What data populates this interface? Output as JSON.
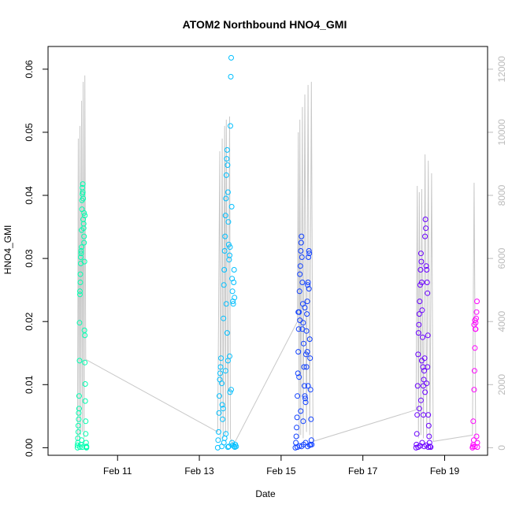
{
  "chart_data": {
    "type": "scatter",
    "title": "ATOM2 Northbound HNO4_GMI",
    "xlabel": "Date",
    "ylabel": "HNO4_GMI",
    "x_ticks": [
      "Feb 11",
      "Feb 13",
      "Feb 15",
      "Feb 17",
      "Feb 19"
    ],
    "x_tick_days": [
      11,
      13,
      15,
      17,
      19
    ],
    "xlim_days": [
      9.3,
      20.05
    ],
    "ylim": [
      -0.0012,
      0.0636
    ],
    "y_ticks": [
      0.0,
      0.01,
      0.02,
      0.03,
      0.04,
      0.05,
      0.06
    ],
    "y_tick_labels": [
      "0.00",
      "0.01",
      "0.02",
      "0.03",
      "0.04",
      "0.05",
      "0.06"
    ],
    "y2_lim": [
      -240,
      12720
    ],
    "y2_ticks": [
      0,
      2000,
      4000,
      6000,
      8000,
      10000,
      12000
    ],
    "y2_tick_labels": [
      "0",
      "2000",
      "4000",
      "6000",
      "8000",
      "10000",
      "12000"
    ],
    "altitude_color": "#c8c8c8",
    "series": [
      {
        "color": "#00ffb0",
        "points": [
          [
            10.02,
            0.0
          ],
          [
            10.02,
            0.0004
          ],
          [
            10.03,
            0.0008
          ],
          [
            10.03,
            0.0015
          ],
          [
            10.04,
            0.0025
          ],
          [
            10.04,
            0.0035
          ],
          [
            10.05,
            0.0045
          ],
          [
            10.05,
            0.0055
          ],
          [
            10.06,
            0.0062
          ],
          [
            10.06,
            0.0082
          ],
          [
            10.07,
            0.0138
          ],
          [
            10.07,
            0.0198
          ],
          [
            10.08,
            0.0243
          ],
          [
            10.08,
            0.0248
          ],
          [
            10.09,
            0.0262
          ],
          [
            10.09,
            0.0275
          ],
          [
            10.1,
            0.0292
          ],
          [
            10.1,
            0.0302
          ],
          [
            10.11,
            0.0308
          ],
          [
            10.11,
            0.0312
          ],
          [
            10.12,
            0.0318
          ],
          [
            10.12,
            0.0345
          ],
          [
            10.13,
            0.0378
          ],
          [
            10.13,
            0.0392
          ],
          [
            10.14,
            0.0402
          ],
          [
            10.14,
            0.0412
          ],
          [
            10.15,
            0.0418
          ],
          [
            10.15,
            0.0405
          ],
          [
            10.16,
            0.0395
          ],
          [
            10.16,
            0.0362
          ],
          [
            10.17,
            0.0355
          ],
          [
            10.17,
            0.0348
          ],
          [
            10.18,
            0.0335
          ],
          [
            10.18,
            0.0325
          ],
          [
            10.19,
            0.0295
          ],
          [
            10.19,
            0.0186
          ],
          [
            10.2,
            0.0178
          ],
          [
            10.2,
            0.0135
          ],
          [
            10.21,
            0.0101
          ],
          [
            10.21,
            0.0074
          ],
          [
            10.22,
            0.0042
          ],
          [
            10.22,
            0.0022
          ],
          [
            10.23,
            0.0008
          ],
          [
            10.23,
            0.0001
          ],
          [
            10.24,
            0.0
          ],
          [
            10.24,
            0.0002
          ],
          [
            10.08,
            0.0001
          ],
          [
            10.1,
            0.0005
          ],
          [
            10.12,
            0.0012
          ],
          [
            10.14,
            0.0001
          ],
          [
            10.18,
            0.0372
          ],
          [
            10.2,
            0.0368
          ]
        ]
      },
      {
        "color": "#00bfff",
        "points": [
          [
            13.45,
            0.0
          ],
          [
            13.46,
            0.0012
          ],
          [
            13.47,
            0.0025
          ],
          [
            13.48,
            0.0055
          ],
          [
            13.49,
            0.0082
          ],
          [
            13.5,
            0.0108
          ],
          [
            13.51,
            0.0118
          ],
          [
            13.52,
            0.0128
          ],
          [
            13.53,
            0.0142
          ],
          [
            13.55,
            0.0102
          ],
          [
            13.56,
            0.0068
          ],
          [
            13.57,
            0.0045
          ],
          [
            13.58,
            0.0062
          ],
          [
            13.59,
            0.0205
          ],
          [
            13.6,
            0.0258
          ],
          [
            13.61,
            0.0282
          ],
          [
            13.62,
            0.0312
          ],
          [
            13.63,
            0.0335
          ],
          [
            13.64,
            0.0368
          ],
          [
            13.65,
            0.0395
          ],
          [
            13.66,
            0.0432
          ],
          [
            13.67,
            0.0458
          ],
          [
            13.68,
            0.0472
          ],
          [
            13.69,
            0.0448
          ],
          [
            13.7,
            0.0405
          ],
          [
            13.71,
            0.0358
          ],
          [
            13.72,
            0.0322
          ],
          [
            13.73,
            0.0298
          ],
          [
            13.74,
            0.0305
          ],
          [
            13.75,
            0.0318
          ],
          [
            13.76,
            0.051
          ],
          [
            13.77,
            0.0588
          ],
          [
            13.78,
            0.0618
          ],
          [
            13.79,
            0.0382
          ],
          [
            13.8,
            0.0268
          ],
          [
            13.81,
            0.0248
          ],
          [
            13.82,
            0.0232
          ],
          [
            13.83,
            0.0228
          ],
          [
            13.84,
            0.0262
          ],
          [
            13.85,
            0.0282
          ],
          [
            13.86,
            0.0238
          ],
          [
            13.87,
            0.0001
          ],
          [
            13.88,
            0.0005
          ],
          [
            13.9,
            0.0002
          ],
          [
            13.55,
            0.0002
          ],
          [
            13.6,
            0.0008
          ],
          [
            13.62,
            0.0015
          ],
          [
            13.65,
            0.0022
          ],
          [
            13.7,
            0.0001
          ],
          [
            13.72,
            0.0002
          ],
          [
            13.75,
            0.0088
          ],
          [
            13.78,
            0.0092
          ],
          [
            13.8,
            0.0008
          ],
          [
            13.82,
            0.0004
          ],
          [
            13.85,
            0.0002
          ],
          [
            13.68,
            0.0182
          ],
          [
            13.66,
            0.0228
          ],
          [
            13.64,
            0.0122
          ],
          [
            13.7,
            0.0138
          ],
          [
            13.74,
            0.0145
          ]
        ]
      },
      {
        "color": "#1040ff",
        "points": [
          [
            15.35,
            0.0
          ],
          [
            15.36,
            0.0008
          ],
          [
            15.37,
            0.0018
          ],
          [
            15.38,
            0.0032
          ],
          [
            15.39,
            0.0048
          ],
          [
            15.4,
            0.0082
          ],
          [
            15.41,
            0.0118
          ],
          [
            15.42,
            0.0152
          ],
          [
            15.43,
            0.0188
          ],
          [
            15.44,
            0.0215
          ],
          [
            15.45,
            0.0248
          ],
          [
            15.46,
            0.0275
          ],
          [
            15.47,
            0.0288
          ],
          [
            15.48,
            0.0312
          ],
          [
            15.49,
            0.0325
          ],
          [
            15.5,
            0.0335
          ],
          [
            15.51,
            0.0302
          ],
          [
            15.52,
            0.0262
          ],
          [
            15.53,
            0.0228
          ],
          [
            15.54,
            0.0198
          ],
          [
            15.55,
            0.0165
          ],
          [
            15.56,
            0.0128
          ],
          [
            15.57,
            0.0098
          ],
          [
            15.58,
            0.0082
          ],
          [
            15.59,
            0.0078
          ],
          [
            15.6,
            0.0072
          ],
          [
            15.61,
            0.0148
          ],
          [
            15.62,
            0.0185
          ],
          [
            15.63,
            0.0212
          ],
          [
            15.64,
            0.0232
          ],
          [
            15.65,
            0.0258
          ],
          [
            15.66,
            0.0262
          ],
          [
            15.67,
            0.0302
          ],
          [
            15.68,
            0.0312
          ],
          [
            15.69,
            0.0308
          ],
          [
            15.7,
            0.0172
          ],
          [
            15.71,
            0.0142
          ],
          [
            15.72,
            0.0092
          ],
          [
            15.73,
            0.0045
          ],
          [
            15.74,
            0.0012
          ],
          [
            15.75,
            0.0005
          ],
          [
            15.4,
            0.0001
          ],
          [
            15.45,
            0.0003
          ],
          [
            15.5,
            0.0002
          ],
          [
            15.55,
            0.0005
          ],
          [
            15.6,
            0.0008
          ],
          [
            15.65,
            0.0002
          ],
          [
            15.7,
            0.0004
          ],
          [
            15.42,
            0.0215
          ],
          [
            15.46,
            0.0202
          ],
          [
            15.52,
            0.0188
          ],
          [
            15.58,
            0.0222
          ],
          [
            15.62,
            0.0128
          ],
          [
            15.66,
            0.0098
          ],
          [
            15.48,
            0.0058
          ],
          [
            15.54,
            0.0042
          ],
          [
            15.44,
            0.0112
          ],
          [
            15.64,
            0.0152
          ],
          [
            15.68,
            0.0252
          ],
          [
            15.72,
            0.0005
          ]
        ]
      },
      {
        "color": "#6a00ff",
        "points": [
          [
            18.3,
            0.0
          ],
          [
            18.31,
            0.0005
          ],
          [
            18.32,
            0.0022
          ],
          [
            18.33,
            0.0052
          ],
          [
            18.34,
            0.0098
          ],
          [
            18.35,
            0.0148
          ],
          [
            18.36,
            0.0182
          ],
          [
            18.37,
            0.0195
          ],
          [
            18.38,
            0.0212
          ],
          [
            18.39,
            0.0232
          ],
          [
            18.4,
            0.0258
          ],
          [
            18.41,
            0.0282
          ],
          [
            18.42,
            0.0308
          ],
          [
            18.43,
            0.0295
          ],
          [
            18.44,
            0.0262
          ],
          [
            18.45,
            0.0218
          ],
          [
            18.46,
            0.0175
          ],
          [
            18.47,
            0.0128
          ],
          [
            18.48,
            0.0098
          ],
          [
            18.49,
            0.0108
          ],
          [
            18.5,
            0.0122
          ],
          [
            18.51,
            0.0142
          ],
          [
            18.52,
            0.0335
          ],
          [
            18.53,
            0.0362
          ],
          [
            18.54,
            0.0348
          ],
          [
            18.55,
            0.0288
          ],
          [
            18.56,
            0.0282
          ],
          [
            18.57,
            0.0262
          ],
          [
            18.58,
            0.0245
          ],
          [
            18.59,
            0.0178
          ],
          [
            18.6,
            0.0052
          ],
          [
            18.61,
            0.0035
          ],
          [
            18.62,
            0.0018
          ],
          [
            18.63,
            0.0008
          ],
          [
            18.64,
            0.0002
          ],
          [
            18.66,
            0.0001
          ],
          [
            18.35,
            0.0001
          ],
          [
            18.4,
            0.0003
          ],
          [
            18.45,
            0.0008
          ],
          [
            18.5,
            0.0002
          ],
          [
            18.55,
            0.0004
          ],
          [
            18.6,
            0.0001
          ],
          [
            18.38,
            0.0062
          ],
          [
            18.42,
            0.0075
          ],
          [
            18.48,
            0.0052
          ],
          [
            18.52,
            0.0088
          ],
          [
            18.56,
            0.0102
          ],
          [
            18.44,
            0.0138
          ],
          [
            18.58,
            0.0128
          ]
        ]
      },
      {
        "color": "#ff00ff",
        "points": [
          [
            19.68,
            0.0
          ],
          [
            19.69,
            0.0002
          ],
          [
            19.7,
            0.0005
          ],
          [
            19.71,
            0.0012
          ],
          [
            19.72,
            0.0092
          ],
          [
            19.73,
            0.0122
          ],
          [
            19.74,
            0.0158
          ],
          [
            19.75,
            0.0188
          ],
          [
            19.76,
            0.0198
          ],
          [
            19.77,
            0.0205
          ],
          [
            19.78,
            0.0215
          ],
          [
            19.79,
            0.0232
          ],
          [
            19.72,
            0.0195
          ],
          [
            19.74,
            0.0202
          ],
          [
            19.76,
            0.0188
          ],
          [
            19.78,
            0.0018
          ],
          [
            19.8,
            0.0008
          ],
          [
            19.7,
            0.0042
          ],
          [
            19.74,
            0.0002
          ],
          [
            19.8,
            0.0001
          ]
        ]
      }
    ],
    "altitude_path": [
      [
        10.02,
        200
      ],
      [
        10.04,
        9800
      ],
      [
        10.06,
        300
      ],
      [
        10.08,
        10200
      ],
      [
        10.1,
        400
      ],
      [
        10.12,
        11000
      ],
      [
        10.14,
        500
      ],
      [
        10.16,
        11600
      ],
      [
        10.18,
        300
      ],
      [
        10.2,
        11800
      ],
      [
        10.22,
        2800
      ],
      [
        13.45,
        500
      ],
      [
        13.5,
        9400
      ],
      [
        13.52,
        200
      ],
      [
        13.56,
        9800
      ],
      [
        13.58,
        300
      ],
      [
        13.62,
        10200
      ],
      [
        13.64,
        400
      ],
      [
        13.66,
        10400
      ],
      [
        13.7,
        500
      ],
      [
        13.74,
        10500
      ],
      [
        13.76,
        300
      ],
      [
        13.79,
        200
      ],
      [
        13.82,
        100
      ],
      [
        13.88,
        200
      ],
      [
        15.4,
        4000
      ],
      [
        15.42,
        10000
      ],
      [
        15.44,
        300
      ],
      [
        15.46,
        10400
      ],
      [
        15.48,
        400
      ],
      [
        15.52,
        10800
      ],
      [
        15.54,
        300
      ],
      [
        15.58,
        11200
      ],
      [
        15.62,
        500
      ],
      [
        15.66,
        11500
      ],
      [
        15.7,
        400
      ],
      [
        15.74,
        11600
      ],
      [
        15.78,
        200
      ],
      [
        18.3,
        1200
      ],
      [
        18.33,
        8300
      ],
      [
        18.36,
        300
      ],
      [
        18.38,
        8100
      ],
      [
        18.42,
        400
      ],
      [
        18.44,
        8200
      ],
      [
        18.48,
        300
      ],
      [
        18.52,
        9300
      ],
      [
        18.56,
        400
      ],
      [
        18.6,
        9100
      ],
      [
        18.64,
        300
      ],
      [
        18.68,
        8700
      ],
      [
        18.72,
        200
      ],
      [
        19.68,
        400
      ],
      [
        19.72,
        8400
      ],
      [
        19.76,
        300
      ],
      [
        19.8,
        200
      ]
    ]
  }
}
